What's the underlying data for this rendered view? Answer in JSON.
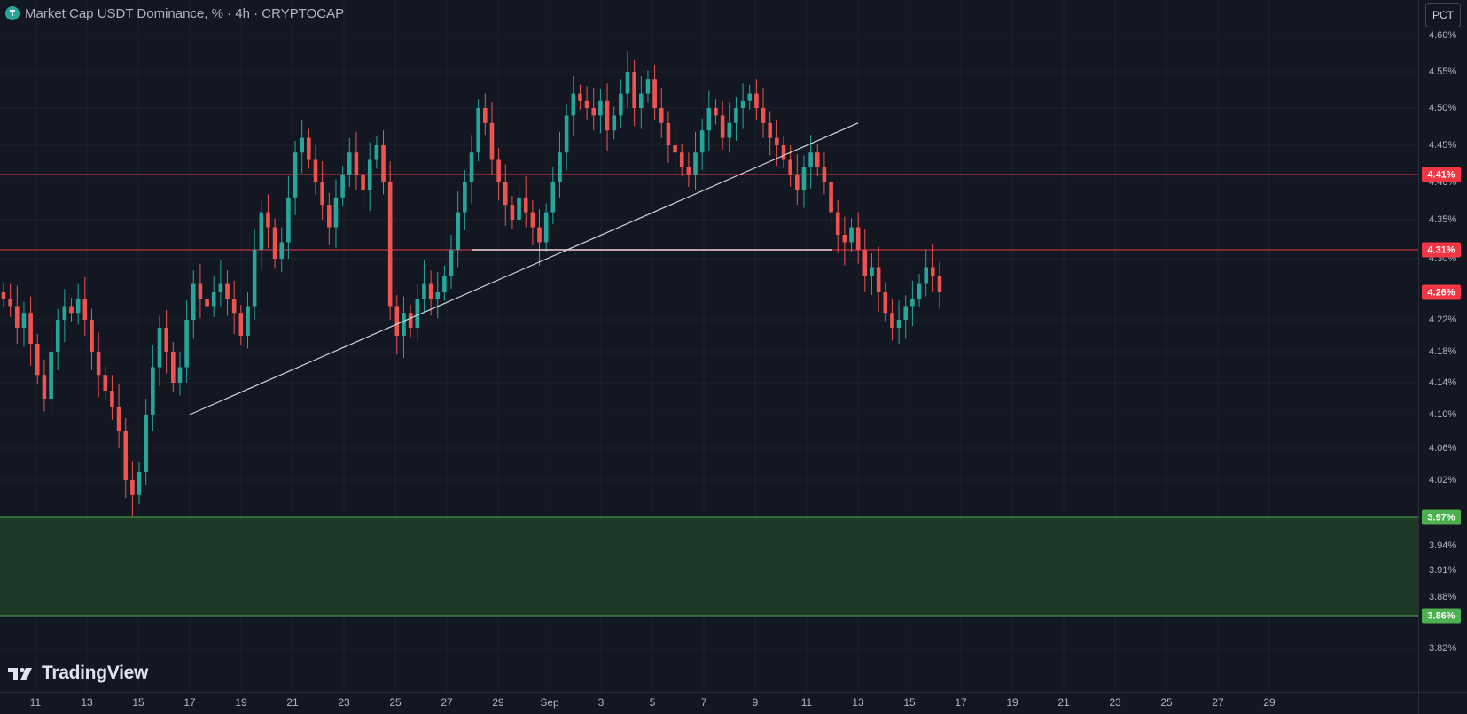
{
  "header": {
    "title": "Market Cap USDT Dominance, % · 4h · CRYPTOCAP"
  },
  "scale_button": "PCT",
  "watermark": {
    "brand": "TradingView"
  },
  "colors": {
    "background": "#131722",
    "up": "#26a69a",
    "down": "#ef5350",
    "resistance": "#f23645",
    "support_zone": "#1e3a26",
    "support_line": "#4caf50",
    "trendline": "#d1d4dc"
  },
  "chart_data": {
    "type": "candlestick",
    "symbol": "USDT Dominance",
    "timeframe": "4h",
    "source": "CRYPTOCAP",
    "scale": "PCT",
    "y_ticks": [
      "4.60%",
      "4.55%",
      "4.50%",
      "4.45%",
      "4.40%",
      "4.35%",
      "4.30%",
      "4.22%",
      "4.18%",
      "4.14%",
      "4.10%",
      "4.06%",
      "4.02%",
      "3.94%",
      "3.91%",
      "3.88%",
      "3.82%"
    ],
    "x_ticks": [
      "11",
      "13",
      "15",
      "17",
      "19",
      "21",
      "23",
      "25",
      "27",
      "29",
      "Sep",
      "3",
      "5",
      "7",
      "9",
      "11",
      "13",
      "15",
      "17",
      "19",
      "21",
      "23",
      "25",
      "27",
      "29"
    ],
    "ylim": [
      3.81,
      4.62
    ],
    "horizontal_levels": [
      {
        "label": "4.41%",
        "value": 4.41,
        "kind": "resistance"
      },
      {
        "label": "4.31%",
        "value": 4.31,
        "kind": "resistance"
      },
      {
        "label": "4.26%",
        "value": 4.26,
        "kind": "last-price"
      },
      {
        "label": "3.97%",
        "value": 3.97,
        "kind": "support"
      },
      {
        "label": "3.86%",
        "value": 3.86,
        "kind": "support"
      }
    ],
    "support_zone": [
      3.86,
      3.97
    ],
    "trendline": {
      "start": [
        "Aug 17",
        4.1
      ],
      "end": [
        "Sep 12",
        4.48
      ]
    },
    "neckline": {
      "start": [
        "Aug 28",
        4.31
      ],
      "end": [
        "Sep 11",
        4.31
      ],
      "value": 4.31
    },
    "closes": [
      4.25,
      4.24,
      4.21,
      4.23,
      4.19,
      4.15,
      4.12,
      4.18,
      4.22,
      4.24,
      4.23,
      4.25,
      4.22,
      4.18,
      4.15,
      4.13,
      4.11,
      4.08,
      4.02,
      4.0,
      4.03,
      4.1,
      4.16,
      4.21,
      4.18,
      4.14,
      4.16,
      4.22,
      4.27,
      4.25,
      4.24,
      4.26,
      4.27,
      4.25,
      4.23,
      4.2,
      4.24,
      4.31,
      4.36,
      4.34,
      4.3,
      4.32,
      4.38,
      4.44,
      4.46,
      4.43,
      4.4,
      4.37,
      4.34,
      4.38,
      4.41,
      4.44,
      4.41,
      4.39,
      4.43,
      4.45,
      4.4,
      4.24,
      4.2,
      4.23,
      4.21,
      4.25,
      4.27,
      4.25,
      4.26,
      4.28,
      4.31,
      4.36,
      4.4,
      4.44,
      4.5,
      4.48,
      4.43,
      4.4,
      4.37,
      4.35,
      4.38,
      4.36,
      4.34,
      4.32,
      4.36,
      4.4,
      4.44,
      4.49,
      4.52,
      4.51,
      4.5,
      4.49,
      4.51,
      4.47,
      4.49,
      4.52,
      4.55,
      4.5,
      4.52,
      4.54,
      4.5,
      4.48,
      4.45,
      4.44,
      4.42,
      4.41,
      4.44,
      4.47,
      4.5,
      4.49,
      4.46,
      4.48,
      4.5,
      4.51,
      4.52,
      4.5,
      4.48,
      4.46,
      4.45,
      4.43,
      4.41,
      4.39,
      4.42,
      4.44,
      4.42,
      4.4,
      4.36,
      4.33,
      4.32,
      4.34,
      4.31,
      4.28,
      4.29,
      4.26,
      4.23,
      4.21,
      4.22,
      4.24,
      4.25,
      4.27,
      4.29,
      4.28,
      4.26
    ]
  }
}
